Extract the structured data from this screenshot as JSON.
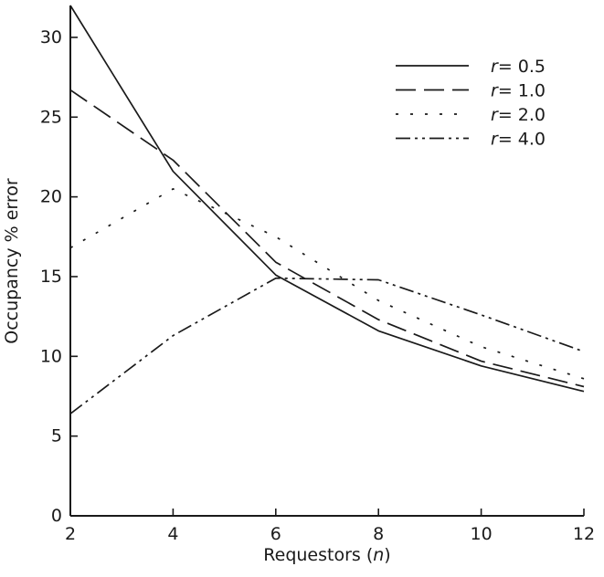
{
  "chart_data": {
    "type": "line",
    "xlabel": "Requestors",
    "xlabel_var": "n",
    "ylabel": "Occupancy % error",
    "x": [
      2,
      4,
      6,
      8,
      10,
      12
    ],
    "xticks": [
      "2",
      "4",
      "6",
      "8",
      "10",
      "12"
    ],
    "yticks": [
      "0",
      "5",
      "10",
      "15",
      "20",
      "25",
      "30"
    ],
    "xlim": [
      2,
      12
    ],
    "ylim": [
      0,
      32
    ],
    "grid": false,
    "legend_position": "top-right",
    "series": [
      {
        "name": "r = 0.5",
        "var": "r",
        "value_label": "= 0.5",
        "dash": "solid",
        "values": [
          32.0,
          21.6,
          15.1,
          11.6,
          9.4,
          7.8
        ]
      },
      {
        "name": "r = 1.0",
        "var": "r",
        "value_label": "= 1.0",
        "dash": "dashed",
        "values": [
          26.7,
          22.3,
          15.9,
          12.3,
          9.7,
          8.1
        ]
      },
      {
        "name": "r = 2.0",
        "var": "r",
        "value_label": "= 2.0",
        "dash": "dotted",
        "values": [
          16.8,
          20.5,
          17.5,
          13.5,
          10.6,
          8.6
        ]
      },
      {
        "name": "r = 4.0",
        "var": "r",
        "value_label": "= 4.0",
        "dash": "dash-dot-dot",
        "values": [
          6.4,
          11.3,
          14.9,
          14.8,
          12.6,
          10.3
        ]
      }
    ]
  }
}
